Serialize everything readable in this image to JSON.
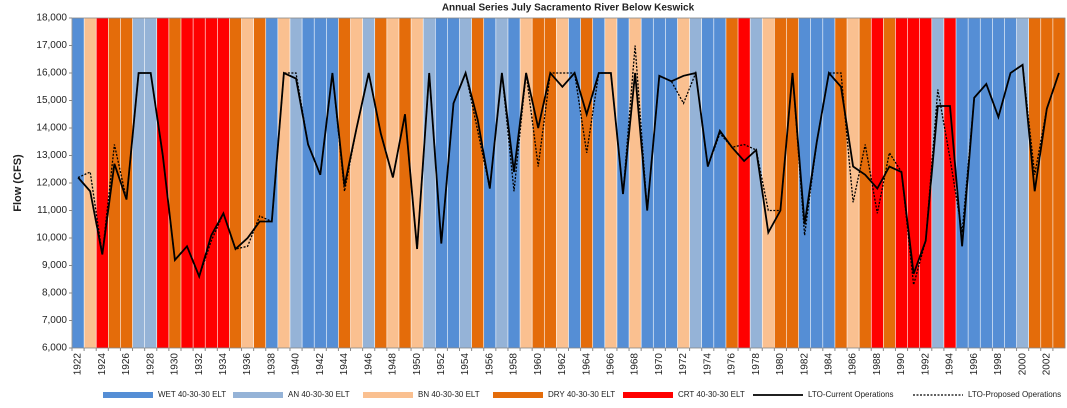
{
  "chart_data": {
    "type": "line",
    "title": "Annual Series July Sacramento River Below Keswick",
    "y_label": "Flow (CFS)",
    "categories": [
      "1922",
      null,
      "1924",
      null,
      "1926",
      null,
      "1928",
      null,
      "1930",
      null,
      "1932",
      null,
      "1934",
      null,
      "1936",
      null,
      "1938",
      null,
      "1940",
      null,
      "1942",
      null,
      "1944",
      null,
      "1946",
      null,
      "1948",
      null,
      "1950",
      null,
      "1952",
      null,
      "1954",
      null,
      "1956",
      null,
      "1958",
      null,
      "1960",
      null,
      "1962",
      null,
      "1964",
      null,
      "1966",
      null,
      "1968",
      null,
      "1970",
      null,
      "1972",
      null,
      "1974",
      null,
      "1976",
      null,
      "1978",
      null,
      "1980",
      null,
      "1982",
      null,
      "1984",
      null,
      "1986",
      null,
      "1988",
      null,
      "1990",
      null,
      "1992",
      null,
      "1994",
      null,
      "1996",
      null,
      "1998",
      null,
      "2000",
      null,
      "2002",
      null
    ],
    "year_types": [
      {
        "name": "WET 40-30-30 ELT",
        "color": "#558ed5"
      },
      {
        "name": "AN  40-30-30 ELT",
        "color": "#95b3d7"
      },
      {
        "name": "BN  40-30-30 ELT",
        "color": "#fac090"
      },
      {
        "name": "DRY 40-30-30 ELT",
        "color": "#e46c0a"
      },
      {
        "name": "CRT 40-30-30 ELT",
        "color": "#ff0000"
      }
    ],
    "year_type": [
      0,
      2,
      4,
      3,
      3,
      1,
      1,
      4,
      3,
      4,
      4,
      4,
      4,
      3,
      2,
      3,
      0,
      2,
      1,
      0,
      0,
      0,
      3,
      2,
      1,
      3,
      2,
      3,
      2,
      1,
      0,
      0,
      1,
      3,
      0,
      1,
      0,
      2,
      3,
      3,
      2,
      0,
      3,
      0,
      2,
      0,
      2,
      0,
      0,
      0,
      2,
      1,
      0,
      0,
      3,
      4,
      1,
      2,
      3,
      3,
      0,
      0,
      0,
      3,
      2,
      3,
      4,
      3,
      4,
      4,
      4,
      1,
      4,
      0,
      0,
      0,
      0,
      0,
      1,
      3,
      3,
      3
    ],
    "series": [
      {
        "name": "LTO-Current Operations",
        "color": "#000000",
        "dash": "solid",
        "values": [
          12200,
          11700,
          9400,
          12700,
          11400,
          16000,
          16000,
          13000,
          9200,
          9700,
          8600,
          10100,
          10900,
          9600,
          10000,
          10600,
          10600,
          16000,
          15800,
          13400,
          12300,
          16000,
          11900,
          14000,
          16000,
          13800,
          12200,
          14500,
          9600,
          16000,
          9800,
          14900,
          16000,
          14300,
          11800,
          16000,
          12400,
          16000,
          14000,
          16000,
          15500,
          16000,
          14500,
          16000,
          16000,
          11600,
          16000,
          11000,
          15900,
          15700,
          15900,
          16000,
          12600,
          13900,
          13300,
          12800,
          13200,
          10200,
          11000,
          16000,
          10500,
          13500,
          16000,
          15500,
          12600,
          12300,
          11800,
          12600,
          12400,
          8700,
          9900,
          14800,
          14800,
          9700,
          15100,
          15600,
          14400,
          16000,
          16300,
          11700,
          14700,
          16000
        ]
      },
      {
        "name": "LTO-Proposed Operations",
        "color": "#000000",
        "dash": "dotted",
        "values": [
          12200,
          12400,
          9400,
          13400,
          11400,
          16000,
          16000,
          13000,
          9200,
          9700,
          8600,
          9900,
          10900,
          9600,
          9700,
          10800,
          10600,
          16000,
          16000,
          13400,
          12300,
          16000,
          11700,
          14000,
          16000,
          13800,
          12200,
          14500,
          9600,
          16000,
          9800,
          14900,
          16000,
          13900,
          11800,
          16000,
          11700,
          16000,
          12600,
          16000,
          16000,
          16000,
          13100,
          16000,
          16000,
          11600,
          17000,
          11000,
          15900,
          15700,
          14900,
          16000,
          12600,
          13800,
          13300,
          13400,
          13200,
          11000,
          11000,
          16000,
          10100,
          13500,
          16000,
          16000,
          11300,
          13400,
          10900,
          13100,
          12400,
          8300,
          9900,
          15400,
          12900,
          10200,
          15100,
          15600,
          14400,
          16000,
          16300,
          12300,
          14700,
          16000
        ]
      }
    ],
    "ylim": [
      6000,
      18000
    ],
    "yticks": [
      {
        "value": 6000,
        "label": "6,000"
      },
      {
        "value": 7000,
        "label": "7,000"
      },
      {
        "value": 8000,
        "label": "8,000"
      },
      {
        "value": 9000,
        "label": "9,000"
      },
      {
        "value": 10000,
        "label": "10,000"
      },
      {
        "value": 11000,
        "label": "11,000"
      },
      {
        "value": 12000,
        "label": "12,000"
      },
      {
        "value": 13000,
        "label": "13,000"
      },
      {
        "value": 14000,
        "label": "14,000"
      },
      {
        "value": 15000,
        "label": "15,000"
      },
      {
        "value": 16000,
        "label": "16,000"
      },
      {
        "value": 17000,
        "label": "17,000"
      },
      {
        "value": 18000,
        "label": "18,000"
      }
    ]
  }
}
